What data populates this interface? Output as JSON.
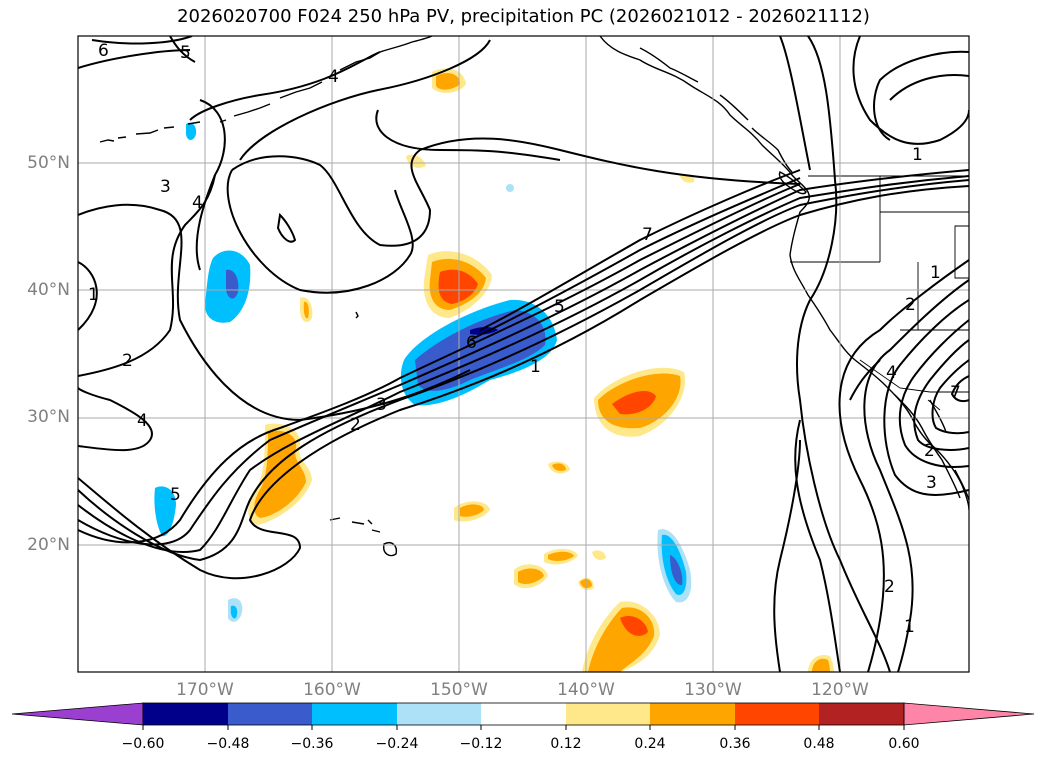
{
  "title": "2026020700 F024 250 hPa PV, precipitation PC (2026021012 - 2026021112)",
  "map": {
    "lat_labels": [
      "50°N",
      "40°N",
      "30°N",
      "20°N"
    ],
    "lon_labels": [
      "170°W",
      "160°W",
      "150°W",
      "140°W",
      "130°W",
      "120°W"
    ],
    "pv_contour_labels": [
      "6",
      "5",
      "4",
      "3",
      "4",
      "1",
      "2",
      "4",
      "5",
      "7",
      "5",
      "6",
      "1",
      "3",
      "2",
      "1",
      "2",
      "4",
      "7",
      "2",
      "3",
      "1",
      "2",
      "1"
    ]
  },
  "colorbar": {
    "ticks": [
      "−0.60",
      "−0.48",
      "−0.36",
      "−0.24",
      "−0.12",
      "0.12",
      "0.24",
      "0.36",
      "0.48",
      "0.60"
    ],
    "colors": [
      "#9b3fd1",
      "#00008b",
      "#3a5bcc",
      "#00bfff",
      "#ade1f8",
      "#ffffff",
      "#ffe88a",
      "#ffa500",
      "#ff4500",
      "#b22222",
      "#ff85a8"
    ]
  },
  "colors": {
    "neg_light": "#ade1f8",
    "neg_mid": "#00bfff",
    "neg_dark": "#3a5bcc",
    "neg_darkest": "#00008b",
    "pos_light": "#ffe88a",
    "pos_mid": "#ffa500",
    "pos_dark": "#ff4500"
  }
}
